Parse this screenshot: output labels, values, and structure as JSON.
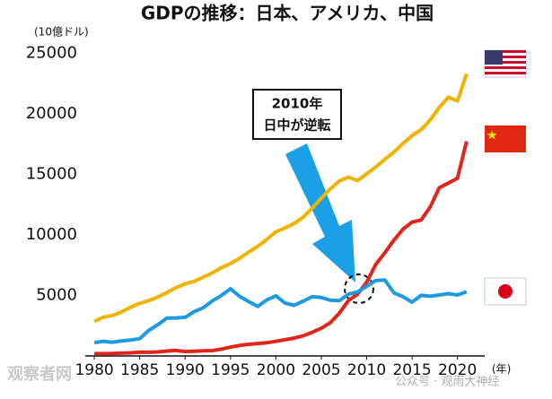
{
  "chart_data": {
    "type": "line",
    "title": "GDPの推移：日本、アメリカ、中国",
    "y_unit": "(10億ドル)",
    "x_unit": "(年)",
    "annotation": [
      "2010年",
      "日中が逆転"
    ],
    "watermarks": [
      "观察者网",
      "公众号 · 观雨大神经"
    ],
    "x": [
      1980,
      1981,
      1982,
      1983,
      1984,
      1985,
      1986,
      1987,
      1988,
      1989,
      1990,
      1991,
      1992,
      1993,
      1994,
      1995,
      1996,
      1997,
      1998,
      1999,
      2000,
      2001,
      2002,
      2003,
      2004,
      2005,
      2006,
      2007,
      2008,
      2009,
      2010,
      2011,
      2012,
      2013,
      2014,
      2015,
      2016,
      2017,
      2018,
      2019,
      2020,
      2021
    ],
    "series": [
      {
        "color": "#f0b400",
        "values": [
          2860,
          3210,
          3340,
          3640,
          4040,
          4340,
          4580,
          4860,
          5240,
          5640,
          5960,
          6160,
          6520,
          6860,
          7290,
          7640,
          8070,
          8580,
          9060,
          9630,
          10250,
          10580,
          10940,
          11460,
          12210,
          13040,
          13810,
          14470,
          14770,
          14480,
          15050,
          15600,
          16250,
          16840,
          17550,
          18210,
          18700,
          19480,
          20530,
          21380,
          21060,
          23320
        ]
      },
      {
        "color": "#e0261c",
        "values": [
          191,
          196,
          205,
          230,
          260,
          310,
          300,
          330,
          410,
          460,
          361,
          383,
          427,
          444,
          564,
          734,
          863,
          961,
          1029,
          1094,
          1211,
          1339,
          1471,
          1660,
          1955,
          2286,
          2752,
          3550,
          4594,
          5102,
          6087,
          7552,
          8532,
          9570,
          10476,
          11062,
          11233,
          12310,
          13895,
          14280,
          14688,
          17734
        ]
      },
      {
        "color": "#1e9be0",
        "values": [
          1105,
          1218,
          1134,
          1243,
          1318,
          1427,
          2121,
          2584,
          3125,
          3140,
          3196,
          3657,
          3988,
          4545,
          4999,
          5546,
          4923,
          4492,
          4098,
          4636,
          4968,
          4374,
          4183,
          4519,
          4893,
          4831,
          4601,
          4579,
          5106,
          5289,
          5759,
          6233,
          6272,
          5212,
          4897,
          4445,
          5004,
          4931,
          5037,
          5149,
          5040,
          5300
        ]
      }
    ],
    "xlim": [
      1979,
      2023
    ],
    "xticks": [
      1980,
      1985,
      1990,
      1995,
      2000,
      2005,
      2010,
      2015,
      2020
    ],
    "ylim": [
      0,
      26000
    ],
    "yticks": [
      5000,
      10000,
      15000,
      20000,
      25000
    ],
    "grid": false
  }
}
